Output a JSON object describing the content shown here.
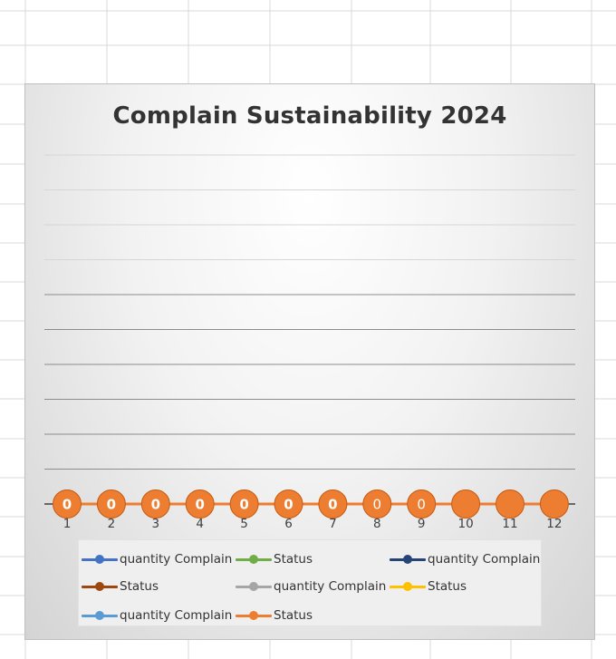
{
  "chart_data": {
    "type": "line",
    "title": "Complain Sustainability 2024",
    "categories": [
      "1",
      "2",
      "3",
      "4",
      "5",
      "6",
      "7",
      "8",
      "9",
      "10",
      "11",
      "12"
    ],
    "series": [
      {
        "name": "quantity Complain",
        "color": "#4472c4",
        "values": [
          0,
          0,
          0,
          0,
          0,
          0,
          0,
          0,
          0,
          0,
          0,
          0
        ]
      },
      {
        "name": "Status",
        "color": "#70ad47",
        "values": [
          0,
          0,
          0,
          0,
          0,
          0,
          0,
          0,
          0,
          0,
          0,
          0
        ]
      },
      {
        "name": "quantity Complain",
        "color": "#264478",
        "values": [
          0,
          0,
          0,
          0,
          0,
          0,
          0,
          0,
          0,
          0,
          0,
          0
        ]
      },
      {
        "name": "Status",
        "color": "#9e480e",
        "values": [
          0,
          0,
          0,
          0,
          0,
          0,
          0,
          0,
          0,
          0,
          0,
          0
        ]
      },
      {
        "name": "quantity Complain",
        "color": "#a5a5a5",
        "values": [
          0,
          0,
          0,
          0,
          0,
          0,
          0,
          0,
          0,
          0,
          0,
          0
        ]
      },
      {
        "name": "Status",
        "color": "#ffc000",
        "values": [
          0,
          0,
          0,
          0,
          0,
          0,
          0,
          0,
          0,
          0,
          0,
          0
        ]
      },
      {
        "name": "quantity Complain",
        "color": "#5b9bd5",
        "values": [
          0,
          0,
          0,
          0,
          0,
          0,
          0,
          0,
          0,
          0,
          0,
          0
        ]
      },
      {
        "name": "Status",
        "color": "#ed7d31",
        "values": [
          0,
          0,
          0,
          0,
          0,
          0,
          0,
          0,
          0,
          0,
          0,
          0
        ]
      }
    ],
    "data_labels": [
      "0",
      "0",
      "0",
      "0",
      "0",
      "0",
      "0",
      "0",
      "0",
      "",
      "",
      ""
    ],
    "gridlines": 10,
    "grid": true,
    "legend_position": "bottom"
  }
}
